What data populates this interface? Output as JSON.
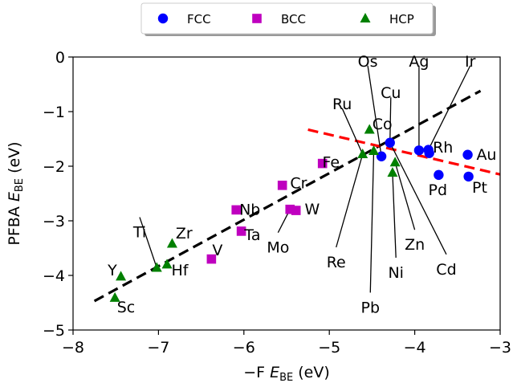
{
  "chart_data": {
    "type": "scatter",
    "title": "",
    "xlabel": {
      "prefix": "−F ",
      "symbol": "E",
      "sub": "BE",
      "unit": " (eV)"
    },
    "ylabel": {
      "prefix": "PFBA ",
      "symbol": "E",
      "sub": "BE",
      "unit": " (eV)"
    },
    "xlim": [
      -8,
      -3
    ],
    "ylim": [
      -5,
      0
    ],
    "xticks": [
      -8,
      -7,
      -6,
      -5,
      -4,
      -3
    ],
    "yticks": [
      0,
      -1,
      -2,
      -3,
      -4,
      -5
    ],
    "xtick_labels": [
      "−8",
      "−7",
      "−6",
      "−5",
      "−4",
      "−3"
    ],
    "ytick_labels": [
      "0",
      "−1",
      "−2",
      "−3",
      "−4",
      "−5"
    ],
    "grid": false,
    "legend_position": "top-center",
    "series": [
      {
        "name": "FCC",
        "marker": "circle",
        "color": "#0000ff",
        "points": [
          {
            "x": -4.29,
            "y": -1.57
          },
          {
            "x": -4.39,
            "y": -1.82
          },
          {
            "x": -3.95,
            "y": -1.71
          },
          {
            "x": -3.84,
            "y": -1.7
          },
          {
            "x": -3.83,
            "y": -1.76
          },
          {
            "x": -3.38,
            "y": -1.79
          },
          {
            "x": -3.72,
            "y": -2.16
          },
          {
            "x": -3.37,
            "y": -2.19
          }
        ]
      },
      {
        "name": "BCC",
        "marker": "square",
        "color": "#bf00bf",
        "points": [
          {
            "x": -5.08,
            "y": -1.95
          },
          {
            "x": -5.55,
            "y": -2.35
          },
          {
            "x": -6.09,
            "y": -2.8
          },
          {
            "x": -5.46,
            "y": -2.79
          },
          {
            "x": -5.39,
            "y": -2.81
          },
          {
            "x": -6.03,
            "y": -3.19
          },
          {
            "x": -6.38,
            "y": -3.7
          }
        ]
      },
      {
        "name": "HCP",
        "marker": "triangle",
        "color": "#008000",
        "points": [
          {
            "x": -4.53,
            "y": -1.33
          },
          {
            "x": -4.61,
            "y": -1.78
          },
          {
            "x": -4.48,
            "y": -1.72
          },
          {
            "x": -4.23,
            "y": -1.93
          },
          {
            "x": -4.26,
            "y": -2.12
          },
          {
            "x": -6.84,
            "y": -3.42
          },
          {
            "x": -6.9,
            "y": -3.8
          },
          {
            "x": -7.02,
            "y": -3.86
          },
          {
            "x": -7.44,
            "y": -4.02
          },
          {
            "x": -7.51,
            "y": -4.41
          }
        ]
      }
    ],
    "fit_lines": [
      {
        "color": "#000000",
        "style": "dashed",
        "x": [
          -7.75,
          -3.23
        ],
        "y": [
          -4.47,
          -0.62
        ]
      },
      {
        "color": "#ff0000",
        "style": "dashed",
        "x": [
          -5.25,
          -3.0
        ],
        "y": [
          -1.33,
          -2.15
        ]
      }
    ],
    "annotations": [
      {
        "text": "Os",
        "tx": -4.55,
        "ty": -0.07,
        "x": -4.39,
        "y": -1.82
      },
      {
        "text": "Ag",
        "tx": -3.95,
        "ty": -0.07,
        "x": -3.95,
        "y": -1.71
      },
      {
        "text": "Ir",
        "tx": -3.35,
        "ty": -0.07,
        "x": -3.84,
        "y": -1.7
      },
      {
        "text": "Ru",
        "tx": -4.85,
        "ty": -0.85,
        "x": -4.61,
        "y": -1.78
      },
      {
        "text": "Cu",
        "tx": -4.28,
        "ty": -0.65,
        "x": -4.29,
        "y": -1.57
      },
      {
        "text": "Co",
        "tx": -4.38,
        "ty": -1.22
      },
      {
        "text": "Fe",
        "tx": -4.98,
        "ty": -1.92
      },
      {
        "text": "Rh",
        "tx": -3.67,
        "ty": -1.65
      },
      {
        "text": "Au",
        "tx": -3.16,
        "ty": -1.78
      },
      {
        "text": "Pd",
        "tx": -3.73,
        "ty": -2.43
      },
      {
        "text": "Pt",
        "tx": -3.24,
        "ty": -2.38
      },
      {
        "text": "Cr",
        "tx": -5.36,
        "ty": -2.3
      },
      {
        "text": "Nb",
        "tx": -5.93,
        "ty": -2.79
      },
      {
        "text": "W",
        "tx": -5.2,
        "ty": -2.78
      },
      {
        "text": "Ta",
        "tx": -5.9,
        "ty": -3.25
      },
      {
        "text": "Mo",
        "tx": -5.6,
        "ty": -3.48,
        "x": -5.46,
        "y": -2.79
      },
      {
        "text": "V",
        "tx": -6.31,
        "ty": -3.53
      },
      {
        "text": "Ti",
        "tx": -7.22,
        "ty": -3.2,
        "x": -7.02,
        "y": -3.86
      },
      {
        "text": "Zr",
        "tx": -6.7,
        "ty": -3.22
      },
      {
        "text": "Hf",
        "tx": -6.75,
        "ty": -3.9
      },
      {
        "text": "Y",
        "tx": -7.54,
        "ty": -3.9
      },
      {
        "text": "Sc",
        "tx": -7.38,
        "ty": -4.57
      },
      {
        "text": "Re",
        "tx": -4.92,
        "ty": -3.75,
        "x": -4.61,
        "y": -1.78
      },
      {
        "text": "Pb",
        "tx": -4.52,
        "ty": -4.58,
        "x": -4.48,
        "y": -1.72
      },
      {
        "text": "Zn",
        "tx": -4.0,
        "ty": -3.43,
        "x": -4.23,
        "y": -1.93
      },
      {
        "text": "Ni",
        "tx": -4.22,
        "ty": -3.94,
        "x": -4.26,
        "y": -2.12
      },
      {
        "text": "Cd",
        "tx": -3.63,
        "ty": -3.88,
        "x": -4.29,
        "y": -1.57
      }
    ]
  }
}
